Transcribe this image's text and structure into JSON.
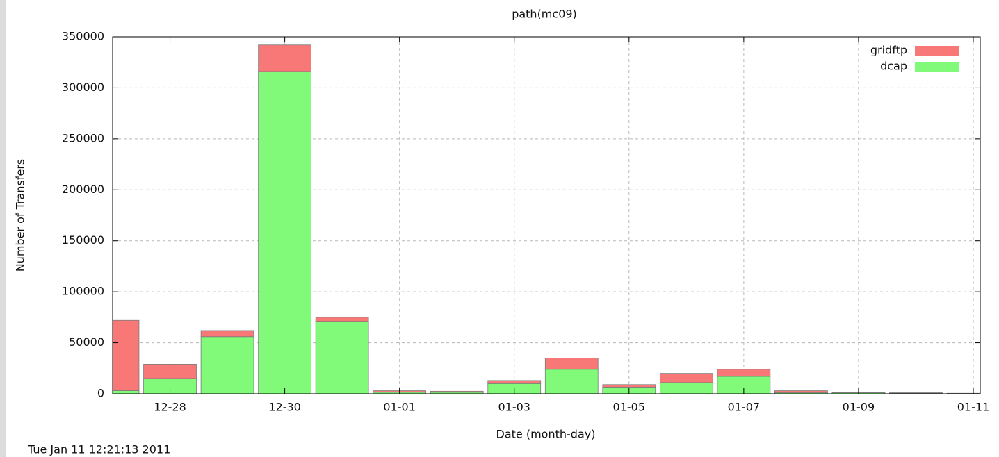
{
  "chart_data": {
    "type": "stacked_bar",
    "title": "path(mc09)",
    "x_label": "Date (month-day)",
    "y_label": "Number of Transfers",
    "footer": "Tue Jan 11 12:21:13 2011",
    "categories": [
      null,
      "12-28",
      null,
      "12-30",
      null,
      "01-01",
      null,
      "01-03",
      null,
      "01-05",
      null,
      "01-07",
      null,
      "01-09",
      null,
      "01-11"
    ],
    "series": [
      {
        "name": "gridftp",
        "color": "#f87878",
        "values": [
          69000,
          14000,
          6000,
          26000,
          4000,
          1500,
          1000,
          3000,
          11000,
          2500,
          9000,
          7000,
          2000,
          500,
          300,
          200
        ]
      },
      {
        "name": "dcap",
        "color": "#80fa78",
        "values": [
          3000,
          15000,
          56000,
          316000,
          71000,
          1500,
          1500,
          10000,
          24000,
          6500,
          11000,
          17000,
          1000,
          1000,
          700,
          300
        ]
      }
    ],
    "ylim": [
      0,
      350000
    ],
    "yticks": [
      0,
      50000,
      100000,
      150000,
      200000,
      250000,
      300000,
      350000
    ],
    "grid": true,
    "legend": "top-right"
  }
}
